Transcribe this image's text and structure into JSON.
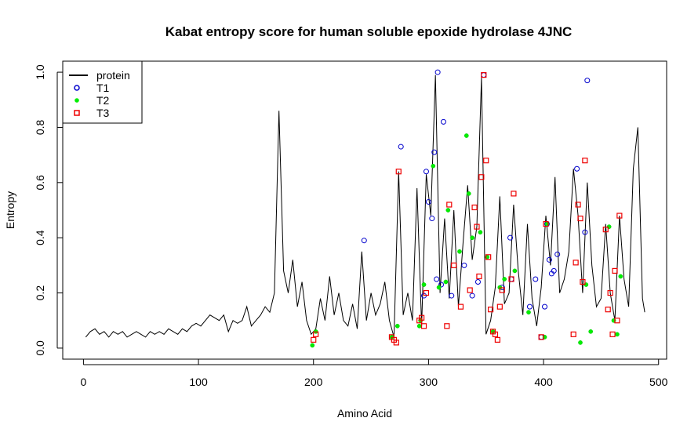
{
  "chart_data": {
    "type": "line",
    "title": "Kabat entropy score for  human soluble epoxide hydrolase 4JNC",
    "xlabel": "Amino Acid",
    "ylabel": "Entropy",
    "xlim": [
      -18,
      507
    ],
    "ylim": [
      -0.04,
      1.04
    ],
    "xticks": [
      0,
      100,
      200,
      300,
      400,
      500
    ],
    "yticks": [
      0.0,
      0.2,
      0.4,
      0.6,
      0.8,
      1.0
    ],
    "xtick_labels": [
      "0",
      "100",
      "200",
      "300",
      "400",
      "500"
    ],
    "ytick_labels": [
      "0.0",
      "0.2",
      "0.4",
      "0.6",
      "0.8",
      "1.0"
    ],
    "legend_position": "top-left",
    "legend": [
      {
        "label": "protein",
        "style": "line",
        "color": "#000000"
      },
      {
        "label": "T1",
        "style": "open-circle",
        "color": "#0000cc"
      },
      {
        "label": "T2",
        "style": "filled-circle",
        "color": "#00ee00"
      },
      {
        "label": "T3",
        "style": "open-square",
        "color": "#ee0000"
      }
    ],
    "series": [
      {
        "name": "protein",
        "x": [
          2,
          6,
          10,
          14,
          18,
          22,
          26,
          30,
          34,
          38,
          42,
          46,
          50,
          54,
          58,
          62,
          66,
          70,
          74,
          78,
          82,
          86,
          90,
          94,
          98,
          102,
          106,
          110,
          114,
          118,
          122,
          126,
          130,
          134,
          138,
          142,
          146,
          150,
          154,
          158,
          162,
          166,
          170,
          174,
          178,
          182,
          186,
          190,
          194,
          198,
          202,
          206,
          210,
          214,
          218,
          222,
          226,
          230,
          234,
          238,
          242,
          246,
          250,
          254,
          258,
          262,
          266,
          270,
          274,
          278,
          282,
          286,
          290,
          294,
          298,
          302,
          306,
          310,
          314,
          318,
          322,
          326,
          330,
          334,
          338,
          342,
          346,
          350,
          354,
          358,
          362,
          366,
          370,
          374,
          378,
          382,
          386,
          390,
          394,
          398,
          402,
          406,
          410,
          414,
          418,
          422,
          426,
          430,
          434,
          438,
          442,
          446,
          450,
          454,
          458,
          462,
          466,
          470,
          474,
          478,
          482,
          486,
          488
        ],
        "y": [
          0.04,
          0.06,
          0.07,
          0.05,
          0.06,
          0.04,
          0.06,
          0.05,
          0.06,
          0.04,
          0.05,
          0.06,
          0.05,
          0.04,
          0.06,
          0.05,
          0.06,
          0.05,
          0.07,
          0.06,
          0.05,
          0.07,
          0.06,
          0.08,
          0.09,
          0.08,
          0.1,
          0.12,
          0.11,
          0.1,
          0.12,
          0.06,
          0.1,
          0.09,
          0.1,
          0.15,
          0.08,
          0.1,
          0.12,
          0.15,
          0.13,
          0.2,
          0.86,
          0.28,
          0.2,
          0.32,
          0.15,
          0.24,
          0.1,
          0.05,
          0.07,
          0.18,
          0.1,
          0.26,
          0.12,
          0.2,
          0.1,
          0.08,
          0.16,
          0.07,
          0.35,
          0.1,
          0.2,
          0.12,
          0.16,
          0.24,
          0.1,
          0.04,
          0.64,
          0.12,
          0.2,
          0.1,
          0.58,
          0.08,
          0.63,
          0.48,
          0.99,
          0.2,
          0.47,
          0.18,
          0.5,
          0.15,
          0.38,
          0.59,
          0.32,
          0.44,
          0.98,
          0.05,
          0.1,
          0.22,
          0.55,
          0.16,
          0.2,
          0.52,
          0.28,
          0.12,
          0.45,
          0.18,
          0.08,
          0.22,
          0.48,
          0.3,
          0.62,
          0.2,
          0.25,
          0.35,
          0.65,
          0.48,
          0.2,
          0.6,
          0.3,
          0.15,
          0.18,
          0.45,
          0.2,
          0.1,
          0.48,
          0.25,
          0.15,
          0.65,
          0.8,
          0.18,
          0.13
        ]
      },
      {
        "name": "T1",
        "x": [
          244,
          276,
          296,
          298,
          300,
          303,
          305,
          307,
          308,
          311,
          313,
          320,
          331,
          338,
          343,
          348,
          364,
          371,
          372,
          388,
          393,
          398,
          401,
          403,
          405,
          407,
          409,
          412,
          429,
          436,
          438
        ],
        "y": [
          0.39,
          0.73,
          0.19,
          0.64,
          0.53,
          0.47,
          0.71,
          0.25,
          1.0,
          0.23,
          0.82,
          0.19,
          0.3,
          0.19,
          0.24,
          0.99,
          0.22,
          0.4,
          0.25,
          0.15,
          0.25,
          0.04,
          0.15,
          0.45,
          0.32,
          0.27,
          0.28,
          0.34,
          0.65,
          0.42,
          0.97
        ]
      },
      {
        "name": "T2",
        "x": [
          199,
          202,
          268,
          273,
          292,
          293,
          296,
          304,
          309,
          315,
          317,
          327,
          333,
          335,
          338,
          345,
          351,
          356,
          362,
          366,
          375,
          387,
          401,
          403,
          432,
          437,
          441,
          457,
          461,
          464,
          467
        ],
        "y": [
          0.01,
          0.06,
          0.04,
          0.08,
          0.08,
          0.1,
          0.23,
          0.66,
          0.22,
          0.24,
          0.5,
          0.35,
          0.77,
          0.56,
          0.4,
          0.42,
          0.33,
          0.06,
          0.22,
          0.25,
          0.28,
          0.13,
          0.04,
          0.45,
          0.02,
          0.23,
          0.06,
          0.44,
          0.1,
          0.05,
          0.26
        ]
      },
      {
        "name": "T3",
        "x": [
          200,
          202,
          268,
          270,
          272,
          274,
          292,
          294,
          296,
          298,
          316,
          318,
          322,
          328,
          336,
          340,
          342,
          344,
          346,
          348,
          350,
          352,
          354,
          356,
          358,
          360,
          362,
          364,
          372,
          374,
          398,
          402,
          426,
          428,
          430,
          432,
          434,
          436,
          454,
          456,
          458,
          460,
          462,
          464,
          466
        ],
        "y": [
          0.03,
          0.05,
          0.04,
          0.03,
          0.02,
          0.64,
          0.1,
          0.11,
          0.08,
          0.2,
          0.08,
          0.52,
          0.3,
          0.15,
          0.21,
          0.51,
          0.44,
          0.26,
          0.62,
          0.99,
          0.68,
          0.33,
          0.14,
          0.06,
          0.05,
          0.03,
          0.15,
          0.21,
          0.25,
          0.56,
          0.04,
          0.45,
          0.05,
          0.31,
          0.52,
          0.47,
          0.24,
          0.68,
          0.43,
          0.14,
          0.2,
          0.05,
          0.28,
          0.1,
          0.48
        ]
      }
    ]
  }
}
